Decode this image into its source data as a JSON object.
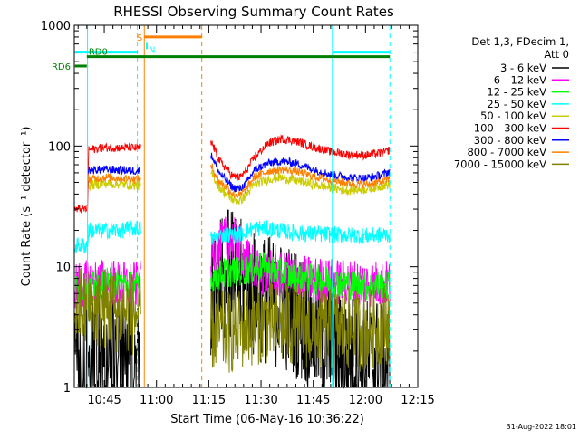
{
  "chart_data": {
    "type": "line",
    "title": "RHESSI Observing Summary Count Rates",
    "xlabel": "Start Time (06-May-16 10:36:22)",
    "ylabel": "Count Rate (s⁻¹ detector⁻¹)",
    "x_unit": "minutes",
    "xlim": [
      36.4,
      135
    ],
    "ylog": true,
    "ylim": [
      1,
      1000
    ],
    "xticks": [
      {
        "value": 45,
        "label": "10:45"
      },
      {
        "value": 60,
        "label": "11:00"
      },
      {
        "value": 75,
        "label": "11:15"
      },
      {
        "value": 90,
        "label": "11:30"
      },
      {
        "value": 105,
        "label": "11:45"
      },
      {
        "value": 120,
        "label": "12:00"
      },
      {
        "value": 135,
        "label": "12:15"
      }
    ],
    "yticks": [
      {
        "value": 1,
        "label": "1"
      },
      {
        "value": 10,
        "label": "10"
      },
      {
        "value": 100,
        "label": "100"
      },
      {
        "value": 1000,
        "label": "1000"
      }
    ],
    "legend_header": [
      "Det 1,3, FDecim 1,",
      "Att 0"
    ],
    "legend_position": "right",
    "series": [
      {
        "name": "3 - 6 keV",
        "color": "#000000",
        "base": 1.6,
        "jitter": 0.55,
        "points": [
          [
            36.6,
            1.5
          ],
          [
            40,
            1.6
          ],
          [
            45,
            1.8
          ],
          [
            52,
            1.7
          ],
          [
            54.5,
            1.6
          ],
          [
            73,
            1.8
          ],
          [
            76,
            5
          ],
          [
            80,
            9
          ],
          [
            83,
            8
          ],
          [
            86,
            6
          ],
          [
            90,
            5.5
          ],
          [
            95,
            5
          ],
          [
            100,
            4.2
          ],
          [
            105,
            3
          ],
          [
            110,
            2.2
          ],
          [
            115,
            1.8
          ],
          [
            119,
            1.6
          ],
          [
            124,
            1.6
          ],
          [
            127,
            1.6
          ]
        ]
      },
      {
        "name": "6 - 12 keV",
        "color": "#ff00ff",
        "base": 7,
        "jitter": 0.2,
        "points": [
          [
            36.6,
            7
          ],
          [
            45,
            7.5
          ],
          [
            52,
            7
          ],
          [
            54.5,
            7
          ],
          [
            76,
            12
          ],
          [
            80,
            17
          ],
          [
            83,
            16
          ],
          [
            86,
            11
          ],
          [
            90,
            9
          ],
          [
            100,
            8
          ],
          [
            110,
            7.5
          ],
          [
            120,
            7.3
          ],
          [
            127,
            7.2
          ]
        ]
      },
      {
        "name": "12 - 25 keV",
        "color": "#00ff00",
        "base": 7,
        "jitter": 0.13,
        "points": [
          [
            36.6,
            6.5
          ],
          [
            40,
            6.5
          ],
          [
            45,
            7.5
          ],
          [
            52,
            7
          ],
          [
            54.5,
            6.8
          ],
          [
            76,
            8
          ],
          [
            80,
            9
          ],
          [
            86,
            9.5
          ],
          [
            90,
            10
          ],
          [
            95,
            9
          ],
          [
            100,
            8.2
          ],
          [
            110,
            7.5
          ],
          [
            120,
            7
          ],
          [
            127,
            7
          ]
        ]
      },
      {
        "name": "25 - 50 keV",
        "color": "#00ffff",
        "base": 20,
        "jitter": 0.07,
        "points": [
          [
            36.6,
            15
          ],
          [
            40.2,
            15
          ],
          [
            40.5,
            20
          ],
          [
            45,
            20
          ],
          [
            50,
            20
          ],
          [
            54.5,
            21
          ],
          [
            76,
            17
          ],
          [
            80,
            18.5
          ],
          [
            83,
            18
          ],
          [
            86,
            20
          ],
          [
            90,
            21
          ],
          [
            95,
            20
          ],
          [
            100,
            19
          ],
          [
            110,
            18.5
          ],
          [
            120,
            18
          ],
          [
            127,
            18.5
          ]
        ]
      },
      {
        "name": "50 - 100 keV",
        "color": "#cccc00",
        "base": 47,
        "jitter": 0.04,
        "points": [
          [
            40.3,
            47
          ],
          [
            45,
            49
          ],
          [
            52,
            48
          ],
          [
            54.5,
            47
          ],
          [
            76,
            58
          ],
          [
            78,
            46
          ],
          [
            80,
            40
          ],
          [
            82,
            36
          ],
          [
            84,
            35
          ],
          [
            86,
            40
          ],
          [
            88,
            48
          ],
          [
            92,
            53
          ],
          [
            95,
            55
          ],
          [
            100,
            52
          ],
          [
            105,
            48
          ],
          [
            110,
            45
          ],
          [
            115,
            43
          ],
          [
            120,
            44
          ],
          [
            125,
            47
          ],
          [
            127,
            48
          ]
        ]
      },
      {
        "name": "100 - 300 keV",
        "color": "#ff0000",
        "base": 95,
        "jitter": 0.035,
        "points": [
          [
            36.6,
            30
          ],
          [
            40.2,
            30
          ],
          [
            40.5,
            93
          ],
          [
            45,
            97
          ],
          [
            52,
            97
          ],
          [
            54.5,
            96
          ],
          [
            76,
            105
          ],
          [
            78,
            76
          ],
          [
            80,
            65
          ],
          [
            82,
            56
          ],
          [
            84,
            55
          ],
          [
            86,
            64
          ],
          [
            88,
            80
          ],
          [
            92,
            105
          ],
          [
            96,
            115
          ],
          [
            100,
            110
          ],
          [
            105,
            98
          ],
          [
            110,
            90
          ],
          [
            115,
            85
          ],
          [
            120,
            84
          ],
          [
            125,
            88
          ],
          [
            127,
            93
          ]
        ]
      },
      {
        "name": "300 - 800 keV",
        "color": "#0000ff",
        "base": 60,
        "jitter": 0.035,
        "points": [
          [
            40.3,
            63
          ],
          [
            45,
            64
          ],
          [
            52,
            63
          ],
          [
            54.5,
            62
          ],
          [
            76,
            82
          ],
          [
            78,
            60
          ],
          [
            80,
            52
          ],
          [
            82,
            45
          ],
          [
            84,
            44
          ],
          [
            86,
            50
          ],
          [
            88,
            63
          ],
          [
            92,
            72
          ],
          [
            96,
            75
          ],
          [
            100,
            72
          ],
          [
            105,
            64
          ],
          [
            110,
            58
          ],
          [
            115,
            55
          ],
          [
            120,
            54
          ],
          [
            125,
            58
          ],
          [
            127,
            62
          ]
        ]
      },
      {
        "name": "800 - 7000 keV",
        "color": "#ff8000",
        "base": 53,
        "jitter": 0.035,
        "points": [
          [
            40.3,
            53
          ],
          [
            45,
            55
          ],
          [
            52,
            54
          ],
          [
            54.5,
            53
          ],
          [
            76,
            66
          ],
          [
            78,
            51
          ],
          [
            80,
            46
          ],
          [
            82,
            40
          ],
          [
            84,
            39
          ],
          [
            86,
            45
          ],
          [
            88,
            55
          ],
          [
            92,
            62
          ],
          [
            96,
            64
          ],
          [
            100,
            62
          ],
          [
            105,
            56
          ],
          [
            110,
            52
          ],
          [
            115,
            49
          ],
          [
            120,
            48
          ],
          [
            125,
            51
          ],
          [
            127,
            54
          ]
        ]
      },
      {
        "name": "7000 - 15000 keV",
        "color": "#808000",
        "base": 3.5,
        "jitter": 0.35,
        "points": [
          [
            36.6,
            4.5
          ],
          [
            45,
            4.5
          ],
          [
            52,
            4.2
          ],
          [
            54.5,
            4
          ],
          [
            76,
            3
          ],
          [
            80,
            2.8
          ],
          [
            86,
            3.2
          ],
          [
            90,
            3.5
          ],
          [
            95,
            3.3
          ],
          [
            100,
            3.2
          ],
          [
            110,
            3
          ],
          [
            120,
            3
          ],
          [
            127,
            3.5
          ]
        ]
      }
    ],
    "top_bars": [
      {
        "label": "",
        "color": "#00ffff",
        "y": 600,
        "ranges": [
          [
            36.6,
            54.5
          ],
          [
            110.5,
            127
          ]
        ]
      },
      {
        "label": "S",
        "color": "#ff8000",
        "y": 800,
        "ranges": [
          [
            56.5,
            73
          ]
        ]
      },
      {
        "label": "N",
        "color": "#00ffff",
        "y": 680,
        "ranges": [
          [
            57.2,
            57.2
          ]
        ]
      },
      {
        "label": "RD6",
        "color": "#008000",
        "y": 460,
        "ranges": [
          [
            36.6,
            40
          ]
        ]
      },
      {
        "label": "RD0",
        "color": "#008000",
        "y": 550,
        "ranges": [
          [
            40,
            127
          ]
        ]
      }
    ],
    "data_gaps": [
      [
        55.5,
        75.5
      ],
      [
        127,
        135
      ]
    ],
    "vlines": [
      {
        "x": 40.2,
        "color": "#00ffff",
        "dashed": false
      },
      {
        "x": 54.5,
        "color": "#00ffff",
        "dashed": true
      },
      {
        "x": 56.5,
        "color": "#ff8000",
        "dashed": false
      },
      {
        "x": 73,
        "color": "#ff8000",
        "dashed": true
      },
      {
        "x": 110.5,
        "color": "#00ffff",
        "dashed": false
      },
      {
        "x": 127,
        "color": "#00ffff",
        "dashed": true
      }
    ],
    "grid": false
  },
  "footer": {
    "timestamp": "31-Aug-2022 18:01"
  }
}
